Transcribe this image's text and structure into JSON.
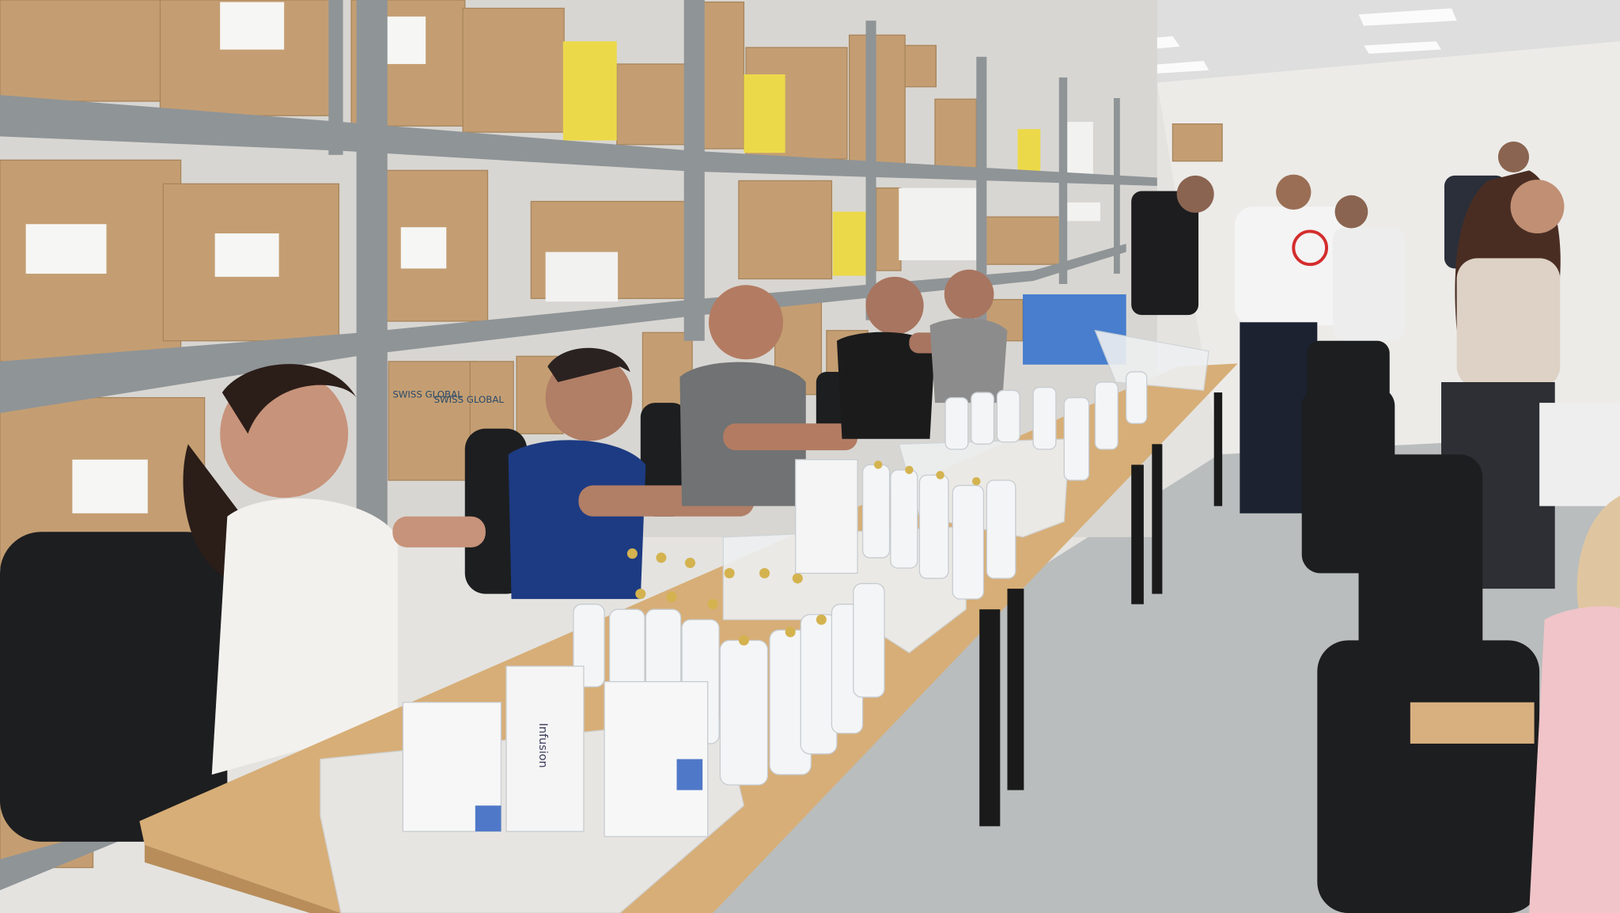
{
  "scene": {
    "box_label": "SWISS GLOBAL",
    "bag_label": "Infusion"
  }
}
